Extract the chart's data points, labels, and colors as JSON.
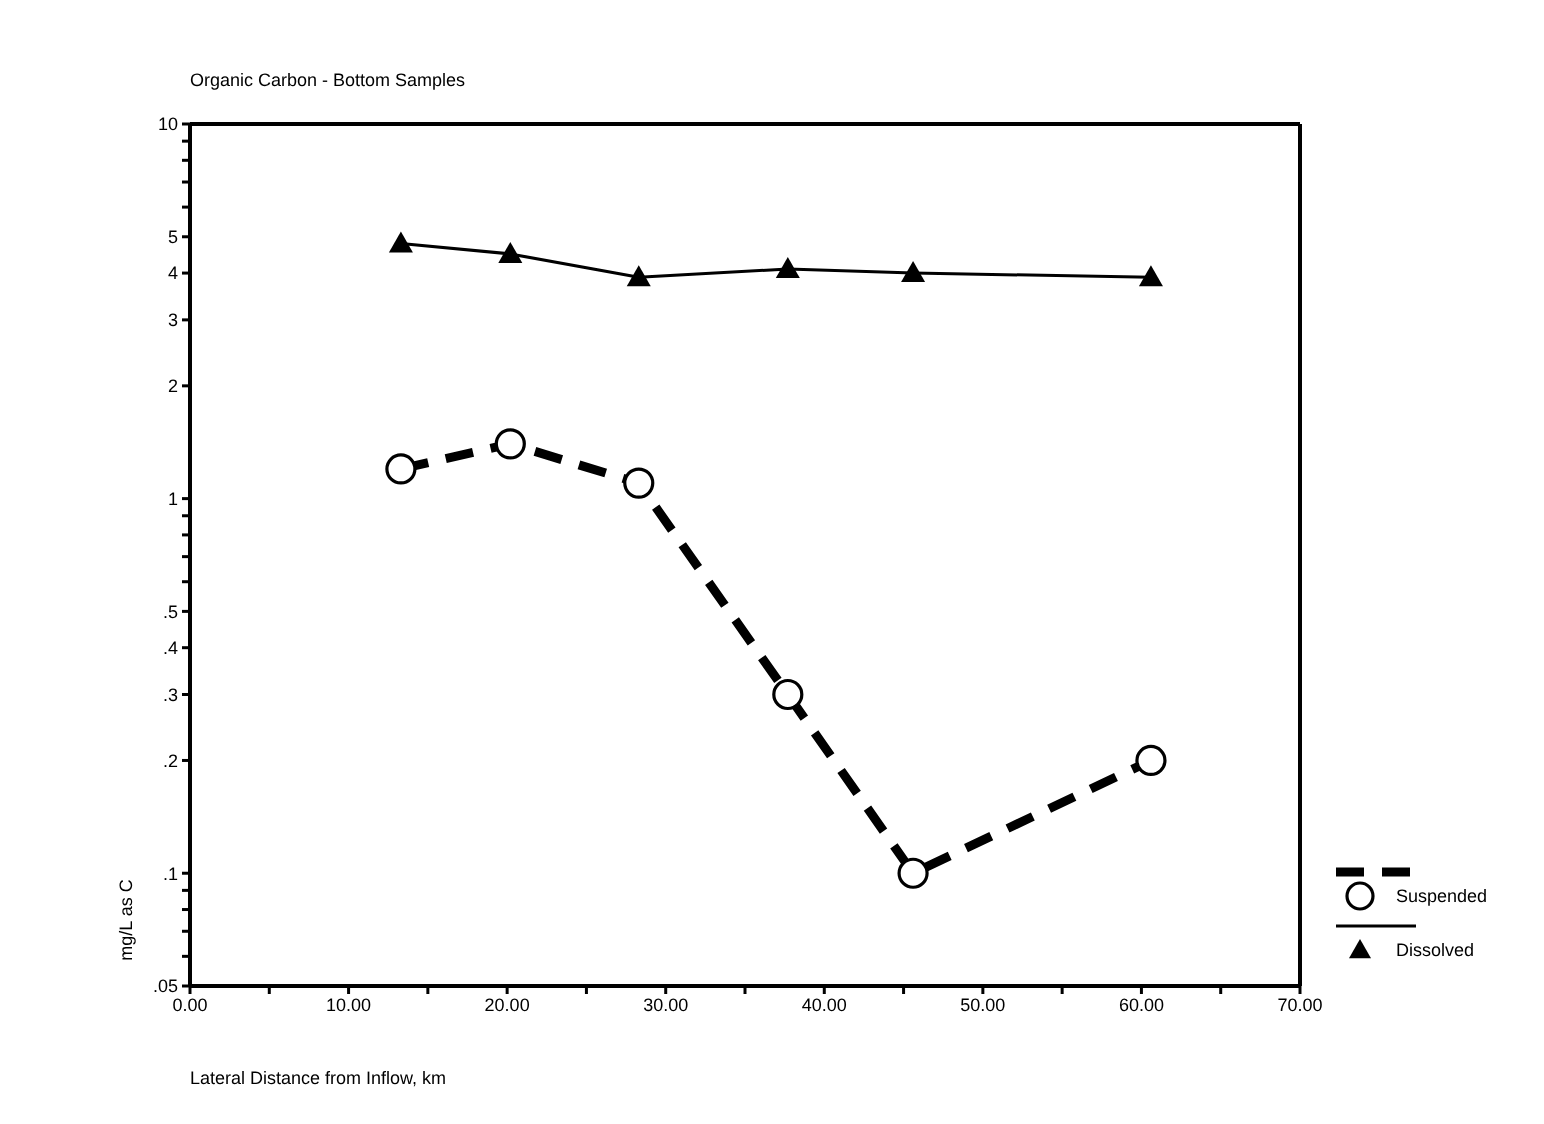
{
  "chart_data": {
    "type": "line",
    "title": "Organic Carbon - Bottom Samples",
    "xlabel": "Lateral Distance from Inflow, km",
    "ylabel": "mg/L as C",
    "x": [
      13.3,
      20.2,
      28.3,
      37.7,
      45.6,
      60.6
    ],
    "series": [
      {
        "name": "Suspended",
        "color": "#000000",
        "values": [
          1.2,
          1.4,
          1.1,
          0.3,
          0.1,
          0.2
        ],
        "marker": "circle",
        "line_style": "dashed"
      },
      {
        "name": "Dissolved",
        "color": "#000000",
        "values": [
          4.8,
          4.5,
          3.9,
          4.1,
          4.0,
          3.9
        ],
        "marker": "triangle",
        "line_style": "solid"
      }
    ],
    "log": "y",
    "xlim": [
      0,
      70
    ],
    "xticks": [
      {
        "value": 0,
        "label": "0.00"
      },
      {
        "value": 5,
        "label": null
      },
      {
        "value": 10,
        "label": "10.00"
      },
      {
        "value": 15,
        "label": null
      },
      {
        "value": 20,
        "label": "20.00"
      },
      {
        "value": 25,
        "label": null
      },
      {
        "value": 30,
        "label": "30.00"
      },
      {
        "value": 35,
        "label": null
      },
      {
        "value": 40,
        "label": "40.00"
      },
      {
        "value": 45,
        "label": null
      },
      {
        "value": 50,
        "label": "50.00"
      },
      {
        "value": 55,
        "label": null
      },
      {
        "value": 60,
        "label": "60.00"
      },
      {
        "value": 65,
        "label": null
      },
      {
        "value": 70,
        "label": "70.00"
      }
    ],
    "ylim": [
      0.05,
      10
    ],
    "yticks": [
      {
        "value": 0.05,
        "label": ".05"
      },
      {
        "value": 0.06,
        "label": null
      },
      {
        "value": 0.07,
        "label": null
      },
      {
        "value": 0.08,
        "label": null
      },
      {
        "value": 0.09,
        "label": null
      },
      {
        "value": 0.1,
        "label": ".1"
      },
      {
        "value": 0.2,
        "label": ".2"
      },
      {
        "value": 0.3,
        "label": ".3"
      },
      {
        "value": 0.4,
        "label": ".4"
      },
      {
        "value": 0.5,
        "label": ".5"
      },
      {
        "value": 0.6,
        "label": null
      },
      {
        "value": 0.7,
        "label": null
      },
      {
        "value": 0.8,
        "label": null
      },
      {
        "value": 0.9,
        "label": null
      },
      {
        "value": 1,
        "label": "1"
      },
      {
        "value": 2,
        "label": "2"
      },
      {
        "value": 3,
        "label": "3"
      },
      {
        "value": 4,
        "label": "4"
      },
      {
        "value": 5,
        "label": "5"
      },
      {
        "value": 6,
        "label": null
      },
      {
        "value": 7,
        "label": null
      },
      {
        "value": 8,
        "label": null
      },
      {
        "value": 9,
        "label": null
      },
      {
        "value": 10,
        "label": "10"
      }
    ],
    "legend": "bottom right"
  }
}
